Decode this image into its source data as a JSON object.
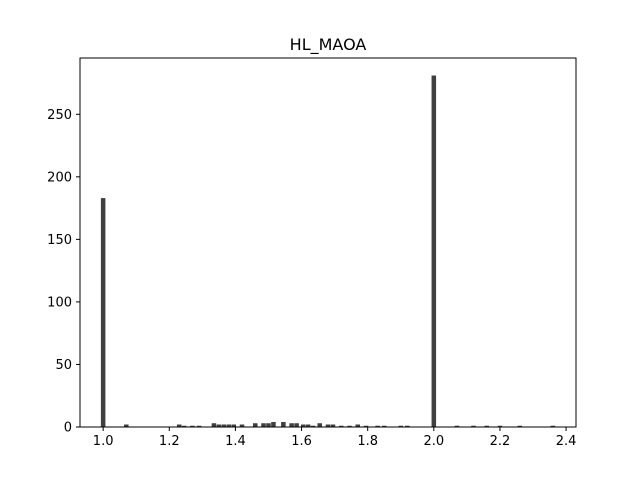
{
  "chart_data": {
    "type": "bar",
    "title": "HL_MAOA",
    "xlabel": "",
    "ylabel": "",
    "xlim": [
      0.93,
      2.43
    ],
    "ylim": [
      0,
      295
    ],
    "xticks": [
      1.0,
      1.2,
      1.4,
      1.6,
      1.8,
      2.0,
      2.2,
      2.4
    ],
    "xtick_labels": [
      "1.0",
      "1.2",
      "1.4",
      "1.6",
      "1.8",
      "2.0",
      "2.2",
      "2.4"
    ],
    "yticks": [
      0,
      50,
      100,
      150,
      200,
      250
    ],
    "ytick_labels": [
      "0",
      "50",
      "100",
      "150",
      "200",
      "250"
    ],
    "grid": false,
    "bar_color": "#404040",
    "bin_width": 0.0137,
    "bins": [
      {
        "x": 1.0,
        "count": 183
      },
      {
        "x": 1.07,
        "count": 2
      },
      {
        "x": 1.23,
        "count": 2
      },
      {
        "x": 1.245,
        "count": 1
      },
      {
        "x": 1.27,
        "count": 1
      },
      {
        "x": 1.29,
        "count": 1
      },
      {
        "x": 1.335,
        "count": 3
      },
      {
        "x": 1.35,
        "count": 2
      },
      {
        "x": 1.365,
        "count": 2
      },
      {
        "x": 1.38,
        "count": 2
      },
      {
        "x": 1.395,
        "count": 2
      },
      {
        "x": 1.42,
        "count": 2
      },
      {
        "x": 1.46,
        "count": 3
      },
      {
        "x": 1.485,
        "count": 3
      },
      {
        "x": 1.5,
        "count": 3
      },
      {
        "x": 1.515,
        "count": 4
      },
      {
        "x": 1.545,
        "count": 4
      },
      {
        "x": 1.57,
        "count": 3
      },
      {
        "x": 1.585,
        "count": 3
      },
      {
        "x": 1.605,
        "count": 2
      },
      {
        "x": 1.62,
        "count": 2
      },
      {
        "x": 1.635,
        "count": 1
      },
      {
        "x": 1.655,
        "count": 3
      },
      {
        "x": 1.68,
        "count": 2
      },
      {
        "x": 1.695,
        "count": 2
      },
      {
        "x": 1.72,
        "count": 1
      },
      {
        "x": 1.745,
        "count": 1
      },
      {
        "x": 1.77,
        "count": 2
      },
      {
        "x": 1.795,
        "count": 1
      },
      {
        "x": 1.83,
        "count": 1
      },
      {
        "x": 1.85,
        "count": 1
      },
      {
        "x": 1.9,
        "count": 1
      },
      {
        "x": 1.92,
        "count": 1
      },
      {
        "x": 2.0,
        "count": 281
      },
      {
        "x": 2.07,
        "count": 1
      },
      {
        "x": 2.12,
        "count": 1
      },
      {
        "x": 2.16,
        "count": 1
      },
      {
        "x": 2.2,
        "count": 1
      },
      {
        "x": 2.26,
        "count": 1
      },
      {
        "x": 2.36,
        "count": 1
      }
    ]
  }
}
